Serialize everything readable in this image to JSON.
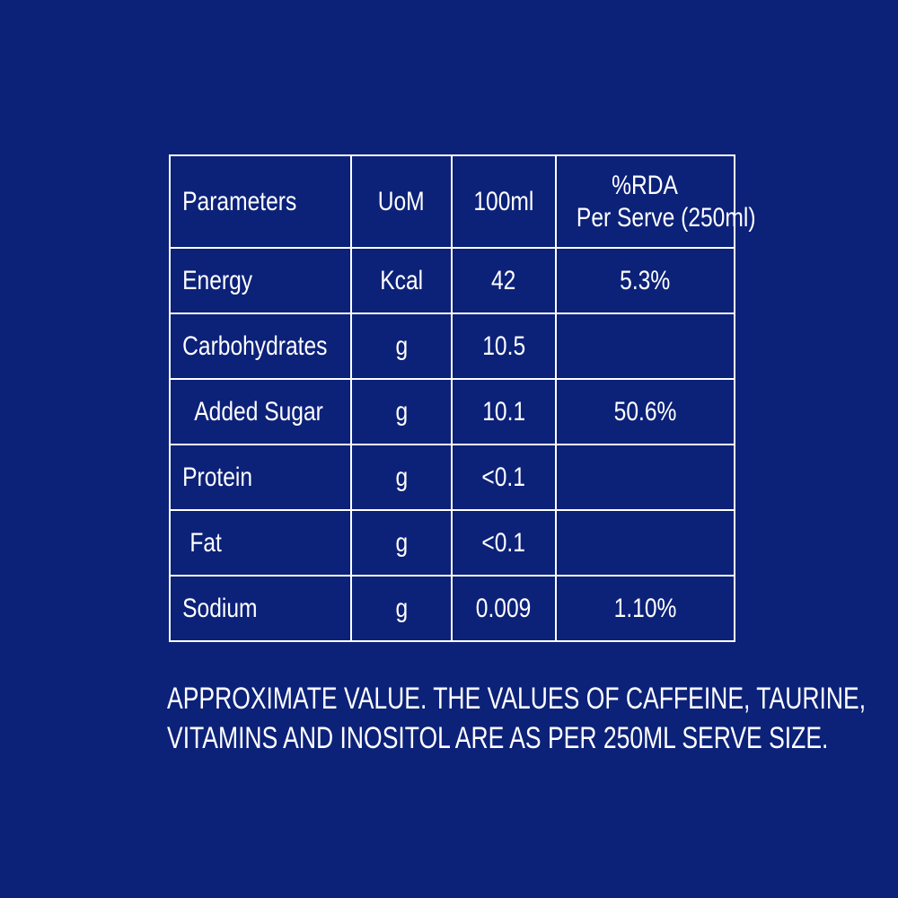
{
  "table": {
    "headers": {
      "parameters": "Parameters",
      "uom": "UoM",
      "per100": "100ml",
      "rda_line1": "%RDA",
      "rda_line2": "Per Serve (250ml)"
    },
    "rows": [
      {
        "parameter": "Energy",
        "uom": "Kcal",
        "per100": "42",
        "rda": "5.3%"
      },
      {
        "parameter": "Carbohydrates",
        "uom": "g",
        "per100": "10.5",
        "rda": ""
      },
      {
        "parameter": "Added Sugar",
        "uom": "g",
        "per100": "10.1",
        "rda": "50.6%"
      },
      {
        "parameter": "Protein",
        "uom": "g",
        "per100": "<0.1",
        "rda": ""
      },
      {
        "parameter": "Fat",
        "uom": "g",
        "per100": "<0.1",
        "rda": ""
      },
      {
        "parameter": "Sodium",
        "uom": "g",
        "per100": "0.009",
        "rda": "1.10%"
      }
    ]
  },
  "note": {
    "line1": "APPROXIMATE VALUE. THE VALUES OF CAFFEINE, TAURINE,",
    "line2": "VITAMINS AND INOSITOL ARE AS PER 250ML SERVE SIZE."
  },
  "colors": {
    "background": "#0c2178",
    "foreground": "#ffffff"
  }
}
